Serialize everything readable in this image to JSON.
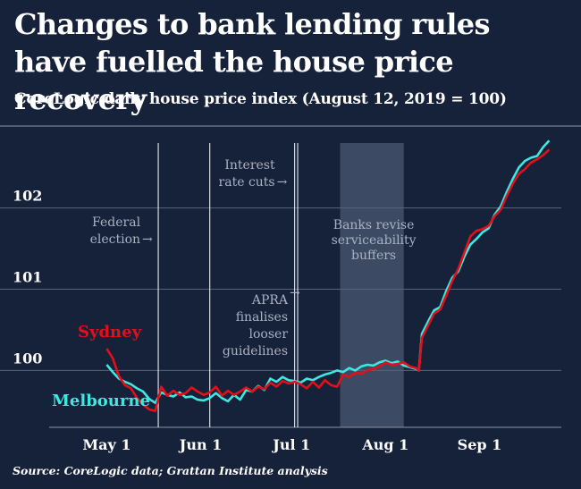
{
  "title": "Changes to bank lending rules have fuelled the house price recovery",
  "subtitle": "CoreLogic daily house price index (August 12, 2019 = 100)",
  "source": "Source: CoreLogic data; Grattan Institute analysis",
  "colors": {
    "background": "#16213a",
    "sydney": "#e3101a",
    "melbourne": "#3ee8e0",
    "shade": "#3c4a63",
    "grid": "#5a6478"
  },
  "chart_data": {
    "type": "line",
    "x_axis": {
      "ticks": [
        "May 1",
        "Jun 1",
        "Jul 1",
        "Aug 1",
        "Sep 1"
      ],
      "tick_dates": [
        "2019-05-01",
        "2019-06-01",
        "2019-07-01",
        "2019-08-01",
        "2019-09-01"
      ],
      "range": [
        "2019-04-12",
        "2019-09-28"
      ]
    },
    "y_axis": {
      "ticks": [
        100,
        101,
        102
      ],
      "range": [
        99.3,
        102.8
      ]
    },
    "grid": true,
    "events": [
      {
        "date": "2019-05-18",
        "label": [
          "Federal",
          "election"
        ]
      },
      {
        "date": "2019-06-04",
        "label": [
          "Interest",
          "rate cuts"
        ]
      },
      {
        "date": "2019-07-02",
        "label": []
      },
      {
        "date": "2019-07-03",
        "label": [
          "APRA",
          "finalises",
          "looser",
          "guidelines"
        ]
      }
    ],
    "shaded_region": {
      "start": "2019-07-17",
      "end": "2019-08-07",
      "label": [
        "Banks revise",
        "serviceability",
        "buffers"
      ]
    },
    "series": [
      {
        "name": "Sydney",
        "points": [
          [
            "2019-05-01",
            100.27
          ],
          [
            "2019-05-03",
            100.15
          ],
          [
            "2019-05-05",
            99.93
          ],
          [
            "2019-05-07",
            99.82
          ],
          [
            "2019-05-09",
            99.78
          ],
          [
            "2019-05-11",
            99.66
          ],
          [
            "2019-05-13",
            99.58
          ],
          [
            "2019-05-15",
            99.52
          ],
          [
            "2019-05-17",
            99.5
          ],
          [
            "2019-05-19",
            99.8
          ],
          [
            "2019-05-21",
            99.69
          ],
          [
            "2019-05-23",
            99.75
          ],
          [
            "2019-05-25",
            99.7
          ],
          [
            "2019-05-27",
            99.72
          ],
          [
            "2019-05-29",
            99.79
          ],
          [
            "2019-05-31",
            99.74
          ],
          [
            "2019-06-02",
            99.7
          ],
          [
            "2019-06-04",
            99.73
          ],
          [
            "2019-06-06",
            99.8
          ],
          [
            "2019-06-08",
            99.69
          ],
          [
            "2019-06-10",
            99.75
          ],
          [
            "2019-06-12",
            99.7
          ],
          [
            "2019-06-14",
            99.74
          ],
          [
            "2019-06-16",
            99.79
          ],
          [
            "2019-06-18",
            99.74
          ],
          [
            "2019-06-20",
            99.8
          ],
          [
            "2019-06-22",
            99.77
          ],
          [
            "2019-06-24",
            99.85
          ],
          [
            "2019-06-26",
            99.8
          ],
          [
            "2019-06-28",
            99.87
          ],
          [
            "2019-06-30",
            99.84
          ],
          [
            "2019-07-02",
            99.86
          ],
          [
            "2019-07-04",
            99.83
          ],
          [
            "2019-07-06",
            99.78
          ],
          [
            "2019-07-08",
            99.86
          ],
          [
            "2019-07-10",
            99.79
          ],
          [
            "2019-07-12",
            99.88
          ],
          [
            "2019-07-14",
            99.82
          ],
          [
            "2019-07-16",
            99.8
          ],
          [
            "2019-07-18",
            99.95
          ],
          [
            "2019-07-20",
            99.92
          ],
          [
            "2019-07-22",
            99.97
          ],
          [
            "2019-07-24",
            99.96
          ],
          [
            "2019-07-26",
            100.0
          ],
          [
            "2019-07-28",
            100.02
          ],
          [
            "2019-07-30",
            100.05
          ],
          [
            "2019-08-01",
            100.1
          ],
          [
            "2019-08-03",
            100.07
          ],
          [
            "2019-08-05",
            100.08
          ],
          [
            "2019-08-07",
            100.1
          ],
          [
            "2019-08-09",
            100.05
          ],
          [
            "2019-08-11",
            100.03
          ],
          [
            "2019-08-12",
            100.0
          ],
          [
            "2019-08-13",
            100.4
          ],
          [
            "2019-08-15",
            100.55
          ],
          [
            "2019-08-17",
            100.7
          ],
          [
            "2019-08-19",
            100.75
          ],
          [
            "2019-08-21",
            100.92
          ],
          [
            "2019-08-23",
            101.1
          ],
          [
            "2019-08-25",
            101.25
          ],
          [
            "2019-08-27",
            101.45
          ],
          [
            "2019-08-29",
            101.65
          ],
          [
            "2019-08-31",
            101.72
          ],
          [
            "2019-09-02",
            101.74
          ],
          [
            "2019-09-04",
            101.78
          ],
          [
            "2019-09-06",
            101.9
          ],
          [
            "2019-09-08",
            101.98
          ],
          [
            "2019-09-10",
            102.15
          ],
          [
            "2019-09-12",
            102.3
          ],
          [
            "2019-09-14",
            102.42
          ],
          [
            "2019-09-16",
            102.48
          ],
          [
            "2019-09-18",
            102.56
          ],
          [
            "2019-09-20",
            102.6
          ],
          [
            "2019-09-22",
            102.65
          ],
          [
            "2019-09-24",
            102.72
          ]
        ]
      },
      {
        "name": "Melbourne",
        "points": [
          [
            "2019-05-01",
            100.07
          ],
          [
            "2019-05-03",
            99.98
          ],
          [
            "2019-05-05",
            99.9
          ],
          [
            "2019-05-07",
            99.86
          ],
          [
            "2019-05-09",
            99.83
          ],
          [
            "2019-05-11",
            99.78
          ],
          [
            "2019-05-13",
            99.74
          ],
          [
            "2019-05-15",
            99.65
          ],
          [
            "2019-05-17",
            99.6
          ],
          [
            "2019-05-19",
            99.73
          ],
          [
            "2019-05-21",
            99.7
          ],
          [
            "2019-05-23",
            99.68
          ],
          [
            "2019-05-25",
            99.73
          ],
          [
            "2019-05-27",
            99.67
          ],
          [
            "2019-05-29",
            99.68
          ],
          [
            "2019-05-31",
            99.64
          ],
          [
            "2019-06-02",
            99.63
          ],
          [
            "2019-06-04",
            99.66
          ],
          [
            "2019-06-06",
            99.72
          ],
          [
            "2019-06-08",
            99.66
          ],
          [
            "2019-06-10",
            99.62
          ],
          [
            "2019-06-12",
            99.7
          ],
          [
            "2019-06-14",
            99.64
          ],
          [
            "2019-06-16",
            99.76
          ],
          [
            "2019-06-18",
            99.74
          ],
          [
            "2019-06-20",
            99.81
          ],
          [
            "2019-06-22",
            99.76
          ],
          [
            "2019-06-24",
            99.9
          ],
          [
            "2019-06-26",
            99.86
          ],
          [
            "2019-06-28",
            99.92
          ],
          [
            "2019-06-30",
            99.88
          ],
          [
            "2019-07-02",
            99.87
          ],
          [
            "2019-07-04",
            99.85
          ],
          [
            "2019-07-06",
            99.9
          ],
          [
            "2019-07-08",
            99.88
          ],
          [
            "2019-07-10",
            99.92
          ],
          [
            "2019-07-12",
            99.95
          ],
          [
            "2019-07-14",
            99.97
          ],
          [
            "2019-07-16",
            100.0
          ],
          [
            "2019-07-18",
            99.98
          ],
          [
            "2019-07-20",
            100.03
          ],
          [
            "2019-07-22",
            100.0
          ],
          [
            "2019-07-24",
            100.05
          ],
          [
            "2019-07-26",
            100.07
          ],
          [
            "2019-07-28",
            100.06
          ],
          [
            "2019-07-30",
            100.1
          ],
          [
            "2019-08-01",
            100.12
          ],
          [
            "2019-08-03",
            100.09
          ],
          [
            "2019-08-05",
            100.11
          ],
          [
            "2019-08-07",
            100.06
          ],
          [
            "2019-08-09",
            100.04
          ],
          [
            "2019-08-11",
            100.02
          ],
          [
            "2019-08-12",
            100.0
          ],
          [
            "2019-08-13",
            100.45
          ],
          [
            "2019-08-15",
            100.6
          ],
          [
            "2019-08-17",
            100.74
          ],
          [
            "2019-08-19",
            100.78
          ],
          [
            "2019-08-21",
            100.98
          ],
          [
            "2019-08-23",
            101.14
          ],
          [
            "2019-08-25",
            101.22
          ],
          [
            "2019-08-27",
            101.4
          ],
          [
            "2019-08-29",
            101.55
          ],
          [
            "2019-08-31",
            101.62
          ],
          [
            "2019-09-02",
            101.7
          ],
          [
            "2019-09-04",
            101.75
          ],
          [
            "2019-09-06",
            101.92
          ],
          [
            "2019-09-08",
            102.02
          ],
          [
            "2019-09-10",
            102.2
          ],
          [
            "2019-09-12",
            102.36
          ],
          [
            "2019-09-14",
            102.5
          ],
          [
            "2019-09-16",
            102.58
          ],
          [
            "2019-09-18",
            102.62
          ],
          [
            "2019-09-20",
            102.64
          ],
          [
            "2019-09-22",
            102.75
          ],
          [
            "2019-09-24",
            102.83
          ]
        ]
      }
    ]
  }
}
